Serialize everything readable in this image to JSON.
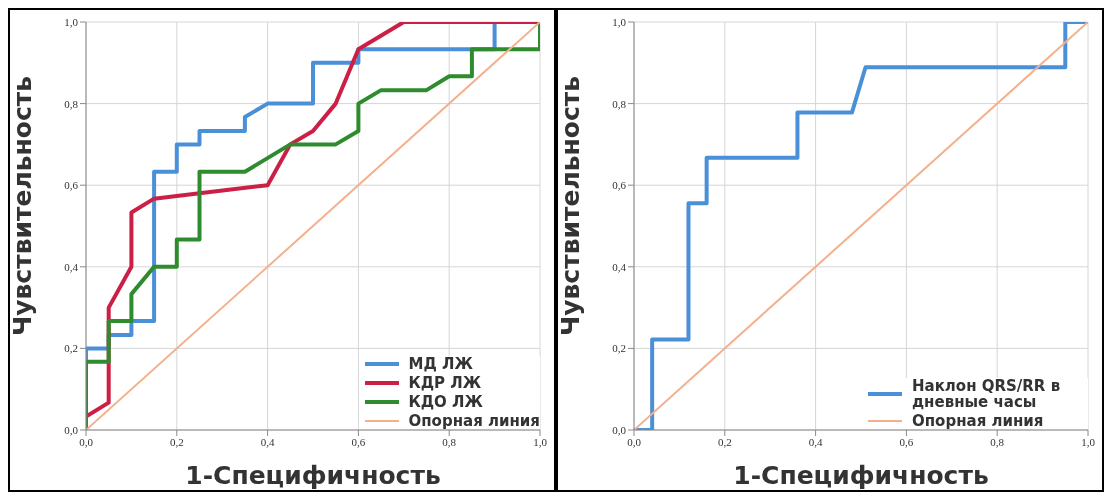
{
  "chart_data": [
    {
      "type": "line",
      "xlabel": "1-Специфичность",
      "ylabel": "Чувствительность",
      "xlim": [
        0,
        1
      ],
      "ylim": [
        0,
        1
      ],
      "xticks": [
        {
          "value": 0,
          "label": "0,0"
        },
        {
          "value": 0.2,
          "label": "0,2"
        },
        {
          "value": 0.4,
          "label": "0,4"
        },
        {
          "value": 0.6,
          "label": "0,6"
        },
        {
          "value": 0.8,
          "label": "0,8"
        },
        {
          "value": 1,
          "label": "1,0"
        }
      ],
      "yticks": [
        {
          "value": 0,
          "label": "0,0"
        },
        {
          "value": 0.2,
          "label": "0,2"
        },
        {
          "value": 0.4,
          "label": "0,4"
        },
        {
          "value": 0.6,
          "label": "0,6"
        },
        {
          "value": 0.8,
          "label": "0,8"
        },
        {
          "value": 1,
          "label": "1,0"
        }
      ],
      "grid": true,
      "legend": "bottom right",
      "marker": "none",
      "line_style": "solid",
      "series": [
        {
          "name": "МД ЛЖ",
          "color": "#4a90d9",
          "x": [
            0,
            0,
            0.05,
            0.05,
            0.1,
            0.1,
            0.15,
            0.15,
            0.2,
            0.2,
            0.25,
            0.25,
            0.35,
            0.35,
            0.4,
            0.5,
            0.5,
            0.6,
            0.6,
            0.9,
            0.9
          ],
          "values": [
            0,
            0.2,
            0.2,
            0.233,
            0.233,
            0.267,
            0.267,
            0.633,
            0.633,
            0.7,
            0.7,
            0.733,
            0.733,
            0.767,
            0.8,
            0.8,
            0.9,
            0.9,
            0.933,
            0.933,
            1
          ]
        },
        {
          "name": "КДР ЛЖ",
          "color": "#cc1f45",
          "x": [
            0,
            0.05,
            0.05,
            0.1,
            0.1,
            0.15,
            0.25,
            0.4,
            0.45,
            0.5,
            0.55,
            0.6,
            0.7,
            1
          ],
          "values": [
            0.033,
            0.067,
            0.3,
            0.4,
            0.533,
            0.567,
            0.58,
            0.6,
            0.7,
            0.733,
            0.8,
            0.933,
            1,
            1
          ]
        },
        {
          "name": "КДО ЛЖ",
          "color": "#2e8b2e",
          "x": [
            0,
            0,
            0.05,
            0.05,
            0.1,
            0.1,
            0.15,
            0.2,
            0.2,
            0.25,
            0.25,
            0.35,
            0.45,
            0.55,
            0.6,
            0.6,
            0.65,
            0.75,
            0.8,
            0.85,
            0.85,
            1,
            1
          ],
          "values": [
            0,
            0.167,
            0.167,
            0.267,
            0.267,
            0.333,
            0.4,
            0.4,
            0.467,
            0.467,
            0.633,
            0.633,
            0.7,
            0.7,
            0.733,
            0.8,
            0.833,
            0.833,
            0.867,
            0.867,
            0.933,
            0.933,
            1
          ]
        },
        {
          "name": "Опорная линия",
          "color": "#f4b08c",
          "x": [
            0,
            1
          ],
          "values": [
            0,
            1
          ]
        }
      ]
    },
    {
      "type": "line",
      "xlabel": "1-Специфичность",
      "ylabel": "Чувствительность",
      "xlim": [
        0,
        1
      ],
      "ylim": [
        0,
        1
      ],
      "xticks": [
        {
          "value": 0,
          "label": "0,0"
        },
        {
          "value": 0.2,
          "label": "0,2"
        },
        {
          "value": 0.4,
          "label": "0,4"
        },
        {
          "value": 0.6,
          "label": "0,6"
        },
        {
          "value": 0.8,
          "label": "0,8"
        },
        {
          "value": 1,
          "label": "1,0"
        }
      ],
      "yticks": [
        {
          "value": 0,
          "label": "0,0"
        },
        {
          "value": 0.2,
          "label": "0,2"
        },
        {
          "value": 0.4,
          "label": "0,4"
        },
        {
          "value": 0.6,
          "label": "0,6"
        },
        {
          "value": 0.8,
          "label": "0,8"
        },
        {
          "value": 1,
          "label": "1,0"
        }
      ],
      "grid": true,
      "legend": "bottom right",
      "marker": "none",
      "line_style": "solid",
      "series": [
        {
          "name": "Наклон QRS/RR в дневные часы",
          "color": "#4a90d9",
          "x": [
            0,
            0.04,
            0.04,
            0.12,
            0.12,
            0.16,
            0.16,
            0.36,
            0.36,
            0.48,
            0.51,
            0.95,
            0.95,
            1
          ],
          "values": [
            0,
            0,
            0.222,
            0.222,
            0.556,
            0.556,
            0.667,
            0.667,
            0.778,
            0.778,
            0.889,
            0.889,
            1,
            1
          ]
        },
        {
          "name": "Опорная линия",
          "color": "#f4b08c",
          "x": [
            0,
            1
          ],
          "values": [
            0,
            1
          ]
        }
      ]
    }
  ]
}
